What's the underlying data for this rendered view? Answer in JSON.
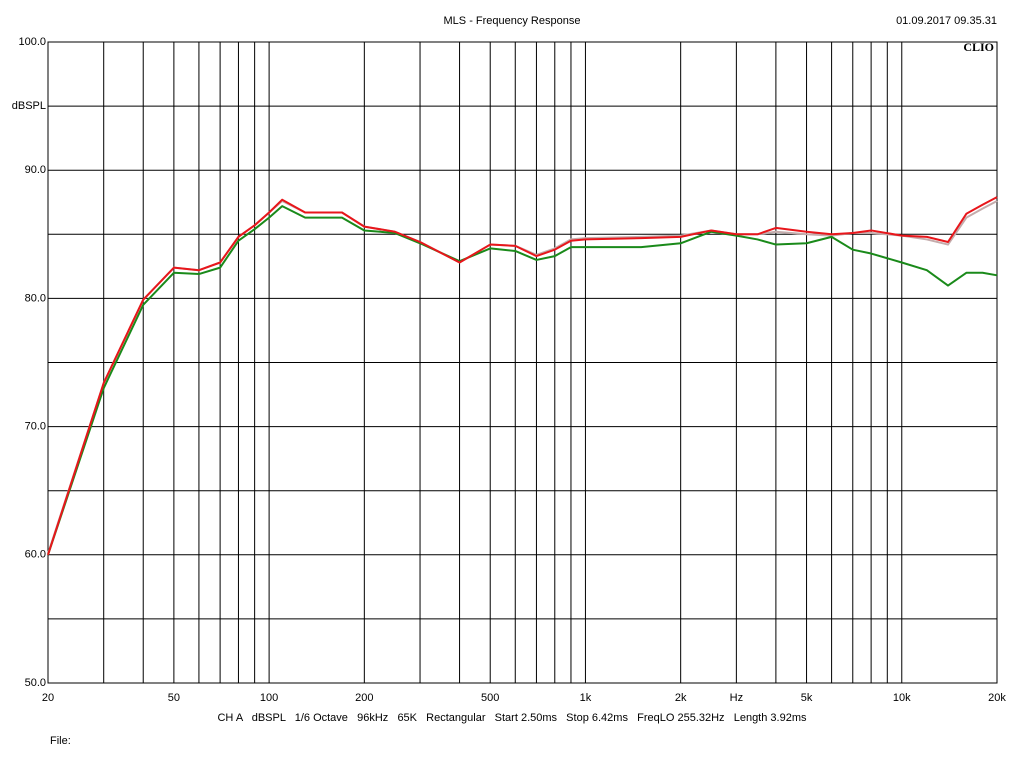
{
  "chart_data": {
    "type": "line",
    "title": "MLS - Frequency Response",
    "timestamp": "01.09.2017 09.35.31",
    "logo": "CLIO",
    "y_label": "dBSPL",
    "footer": "CH A   dBSPL   1/6 Octave   96kHz   65K   Rectangular   Start 2.50ms   Stop 6.42ms   FreqLO 255.32Hz   Length 3.92ms",
    "file_label": "File:",
    "xlog": true,
    "grid": true,
    "xlim": [
      20,
      20000
    ],
    "ylim": [
      50,
      100
    ],
    "yticks": [
      {
        "value": 100,
        "label": "100.0"
      },
      {
        "value": 90,
        "label": "90.0"
      },
      {
        "value": 80,
        "label": "80.0"
      },
      {
        "value": 70,
        "label": "70.0"
      },
      {
        "value": 60,
        "label": "60.0"
      },
      {
        "value": 50,
        "label": "50.0"
      }
    ],
    "minor_yticks": [
      95,
      85,
      75,
      65,
      55
    ],
    "xticks": [
      20,
      50,
      100,
      200,
      500,
      {
        "value": 1000,
        "label": "1k"
      },
      {
        "value": 2000,
        "label": "2k"
      },
      {
        "value": 3000,
        "label": "Hz"
      },
      {
        "value": 5000,
        "label": "5k"
      },
      {
        "value": 10000,
        "label": "10k"
      },
      {
        "value": 20000,
        "label": "20k"
      }
    ],
    "x_grid": [
      30,
      40,
      60,
      70,
      80,
      90,
      300,
      400,
      600,
      700,
      800,
      900,
      4000,
      6000,
      7000,
      8000,
      9000
    ],
    "x": [
      20,
      30,
      40,
      50,
      60,
      70,
      80,
      90,
      100,
      110,
      130,
      170,
      200,
      250,
      300,
      400,
      500,
      600,
      700,
      800,
      900,
      1000,
      1500,
      2000,
      2500,
      3000,
      3500,
      4000,
      5000,
      6000,
      7000,
      8000,
      10000,
      12000,
      14000,
      16000,
      18000,
      20000
    ],
    "series": [
      {
        "name": "gray",
        "color": "#c4acac",
        "values": [
          60.1,
          73.4,
          79.9,
          82.4,
          82.2,
          82.8,
          84.8,
          85.7,
          86.7,
          87.6,
          86.7,
          86.7,
          85.6,
          85.2,
          84.4,
          82.8,
          84.2,
          84.1,
          83.4,
          83.9,
          84.6,
          84.7,
          84.8,
          84.9,
          85.3,
          85.0,
          85.0,
          85.2,
          85.0,
          84.9,
          85.1,
          85.1,
          84.9,
          84.6,
          84.2,
          86.3,
          87.0,
          87.6
        ]
      },
      {
        "name": "green",
        "color": "#1a8a1a",
        "values": [
          60.0,
          73.0,
          79.5,
          82.0,
          81.9,
          82.4,
          84.5,
          85.4,
          86.3,
          87.2,
          86.3,
          86.3,
          85.3,
          85.1,
          84.3,
          82.9,
          83.9,
          83.7,
          83.0,
          83.3,
          84.0,
          84.0,
          84.0,
          84.3,
          85.2,
          84.9,
          84.6,
          84.2,
          84.3,
          84.8,
          83.8,
          83.5,
          82.8,
          82.2,
          81.0,
          82.0,
          82.0,
          81.8
        ]
      },
      {
        "name": "red",
        "color": "#e8161b",
        "values": [
          60.0,
          73.4,
          79.9,
          82.4,
          82.2,
          82.8,
          84.8,
          85.7,
          86.7,
          87.7,
          86.7,
          86.7,
          85.6,
          85.2,
          84.4,
          82.8,
          84.2,
          84.1,
          83.3,
          83.8,
          84.5,
          84.6,
          84.7,
          84.8,
          85.3,
          85.0,
          85.0,
          85.5,
          85.2,
          85.0,
          85.1,
          85.3,
          84.9,
          84.8,
          84.4,
          86.6,
          87.3,
          87.9
        ]
      }
    ]
  }
}
